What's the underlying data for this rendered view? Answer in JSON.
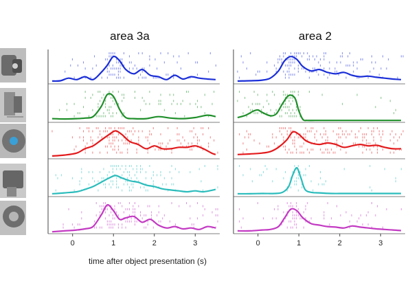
{
  "chart_data": {
    "type": "raster_psth",
    "columns": [
      "area 3a",
      "area 2"
    ],
    "xlabel": "time after object presentation (s)",
    "xlim": [
      -0.6,
      3.6
    ],
    "xticks": [
      0,
      1,
      2,
      3
    ],
    "ylim": [
      0,
      1
    ],
    "series_colors": [
      "#1a2ed8",
      "#1f8f2a",
      "#e31a1c",
      "#2bbcbc",
      "#c33ac3"
    ],
    "objects": [
      "object-1",
      "object-2",
      "object-3",
      "object-4",
      "object-5"
    ],
    "panels": [
      {
        "area": "area 3a",
        "row": 0,
        "curve_x": [
          -0.5,
          -0.3,
          -0.1,
          0.1,
          0.3,
          0.5,
          0.7,
          0.85,
          1.0,
          1.15,
          1.3,
          1.5,
          1.7,
          1.9,
          2.1,
          2.3,
          2.5,
          2.7,
          2.9,
          3.1,
          3.3,
          3.5
        ],
        "curve_y": [
          0.05,
          0.06,
          0.15,
          0.1,
          0.2,
          0.1,
          0.35,
          0.6,
          0.9,
          0.75,
          0.45,
          0.3,
          0.45,
          0.25,
          0.2,
          0.1,
          0.25,
          0.12,
          0.2,
          0.15,
          0.12,
          0.1
        ]
      },
      {
        "area": "area 3a",
        "row": 1,
        "curve_x": [
          -0.5,
          -0.2,
          0.1,
          0.3,
          0.5,
          0.7,
          0.85,
          1.0,
          1.15,
          1.3,
          1.5,
          1.8,
          2.1,
          2.4,
          2.7,
          3.0,
          3.3,
          3.5
        ],
        "curve_y": [
          0.08,
          0.07,
          0.08,
          0.1,
          0.15,
          0.5,
          0.92,
          0.85,
          0.4,
          0.12,
          0.08,
          0.08,
          0.15,
          0.1,
          0.08,
          0.12,
          0.2,
          0.15
        ]
      },
      {
        "area": "area 3a",
        "row": 2,
        "curve_x": [
          -0.5,
          -0.2,
          0.1,
          0.3,
          0.5,
          0.7,
          0.9,
          1.05,
          1.2,
          1.4,
          1.6,
          1.8,
          2.0,
          2.2,
          2.4,
          2.6,
          2.8,
          3.0,
          3.2,
          3.4,
          3.5
        ],
        "curve_y": [
          0.05,
          0.08,
          0.15,
          0.3,
          0.4,
          0.6,
          0.8,
          0.92,
          0.8,
          0.55,
          0.45,
          0.3,
          0.4,
          0.3,
          0.3,
          0.35,
          0.35,
          0.4,
          0.3,
          0.15,
          0.1
        ]
      },
      {
        "area": "area 3a",
        "row": 3,
        "curve_x": [
          -0.5,
          -0.2,
          0.1,
          0.3,
          0.5,
          0.7,
          0.9,
          1.05,
          1.2,
          1.4,
          1.6,
          1.8,
          2.0,
          2.2,
          2.4,
          2.6,
          2.8,
          3.0,
          3.2,
          3.5
        ],
        "curve_y": [
          0.05,
          0.08,
          0.12,
          0.2,
          0.3,
          0.45,
          0.6,
          0.68,
          0.6,
          0.5,
          0.45,
          0.35,
          0.3,
          0.22,
          0.18,
          0.15,
          0.12,
          0.15,
          0.12,
          0.2
        ]
      },
      {
        "area": "area 3a",
        "row": 4,
        "curve_x": [
          -0.5,
          -0.2,
          0.1,
          0.3,
          0.5,
          0.7,
          0.85,
          1.0,
          1.15,
          1.3,
          1.5,
          1.7,
          1.9,
          2.1,
          2.3,
          2.5,
          2.7,
          2.9,
          3.1,
          3.3,
          3.5
        ],
        "curve_y": [
          0.02,
          0.05,
          0.08,
          0.12,
          0.2,
          0.6,
          0.95,
          0.75,
          0.45,
          0.5,
          0.55,
          0.35,
          0.45,
          0.25,
          0.15,
          0.2,
          0.12,
          0.15,
          0.1,
          0.2,
          0.15
        ]
      },
      {
        "area": "area 2",
        "row": 0,
        "curve_x": [
          -0.5,
          -0.2,
          0.1,
          0.3,
          0.5,
          0.65,
          0.8,
          0.95,
          1.1,
          1.3,
          1.5,
          1.7,
          1.9,
          2.1,
          2.3,
          2.5,
          2.7,
          2.9,
          3.1,
          3.3,
          3.5
        ],
        "curve_y": [
          0.05,
          0.06,
          0.08,
          0.15,
          0.4,
          0.75,
          0.9,
          0.8,
          0.55,
          0.4,
          0.45,
          0.35,
          0.3,
          0.35,
          0.25,
          0.2,
          0.22,
          0.18,
          0.15,
          0.12,
          0.1
        ]
      },
      {
        "area": "area 2",
        "row": 1,
        "curve_x": [
          -0.5,
          -0.3,
          -0.1,
          0.0,
          0.1,
          0.3,
          0.45,
          0.6,
          0.75,
          0.9,
          1.0,
          1.1,
          1.2,
          1.4,
          1.8,
          2.5,
          3.0,
          3.5
        ],
        "curve_y": [
          0.12,
          0.2,
          0.35,
          0.38,
          0.3,
          0.18,
          0.25,
          0.6,
          0.88,
          0.8,
          0.35,
          0.05,
          0.02,
          0.02,
          0.02,
          0.02,
          0.02,
          0.02
        ]
      },
      {
        "area": "area 2",
        "row": 2,
        "curve_x": [
          -0.5,
          -0.2,
          0.1,
          0.3,
          0.5,
          0.7,
          0.85,
          1.0,
          1.15,
          1.3,
          1.5,
          1.7,
          1.9,
          2.1,
          2.3,
          2.5,
          2.7,
          2.9,
          3.1,
          3.3,
          3.5
        ],
        "curve_y": [
          0.1,
          0.12,
          0.15,
          0.2,
          0.35,
          0.6,
          0.88,
          0.8,
          0.6,
          0.5,
          0.45,
          0.5,
          0.45,
          0.35,
          0.4,
          0.45,
          0.4,
          0.42,
          0.35,
          0.3,
          0.3
        ]
      },
      {
        "area": "area 2",
        "row": 3,
        "curve_x": [
          -0.5,
          -0.2,
          0.1,
          0.4,
          0.6,
          0.75,
          0.85,
          0.95,
          1.05,
          1.15,
          1.3,
          1.5,
          1.8,
          2.1,
          2.4,
          2.8,
          3.2,
          3.5
        ],
        "curve_y": [
          0.05,
          0.05,
          0.06,
          0.06,
          0.1,
          0.3,
          0.7,
          0.95,
          0.6,
          0.2,
          0.1,
          0.08,
          0.06,
          0.06,
          0.06,
          0.06,
          0.06,
          0.06
        ]
      },
      {
        "area": "area 2",
        "row": 4,
        "curve_x": [
          -0.5,
          -0.2,
          0.1,
          0.3,
          0.5,
          0.65,
          0.8,
          0.95,
          1.1,
          1.3,
          1.5,
          1.7,
          1.9,
          2.1,
          2.3,
          2.5,
          2.7,
          2.9,
          3.1,
          3.3,
          3.5
        ],
        "curve_y": [
          0.05,
          0.05,
          0.08,
          0.1,
          0.2,
          0.5,
          0.8,
          0.75,
          0.5,
          0.3,
          0.25,
          0.2,
          0.18,
          0.15,
          0.22,
          0.18,
          0.15,
          0.12,
          0.1,
          0.08,
          0.06
        ]
      }
    ]
  }
}
